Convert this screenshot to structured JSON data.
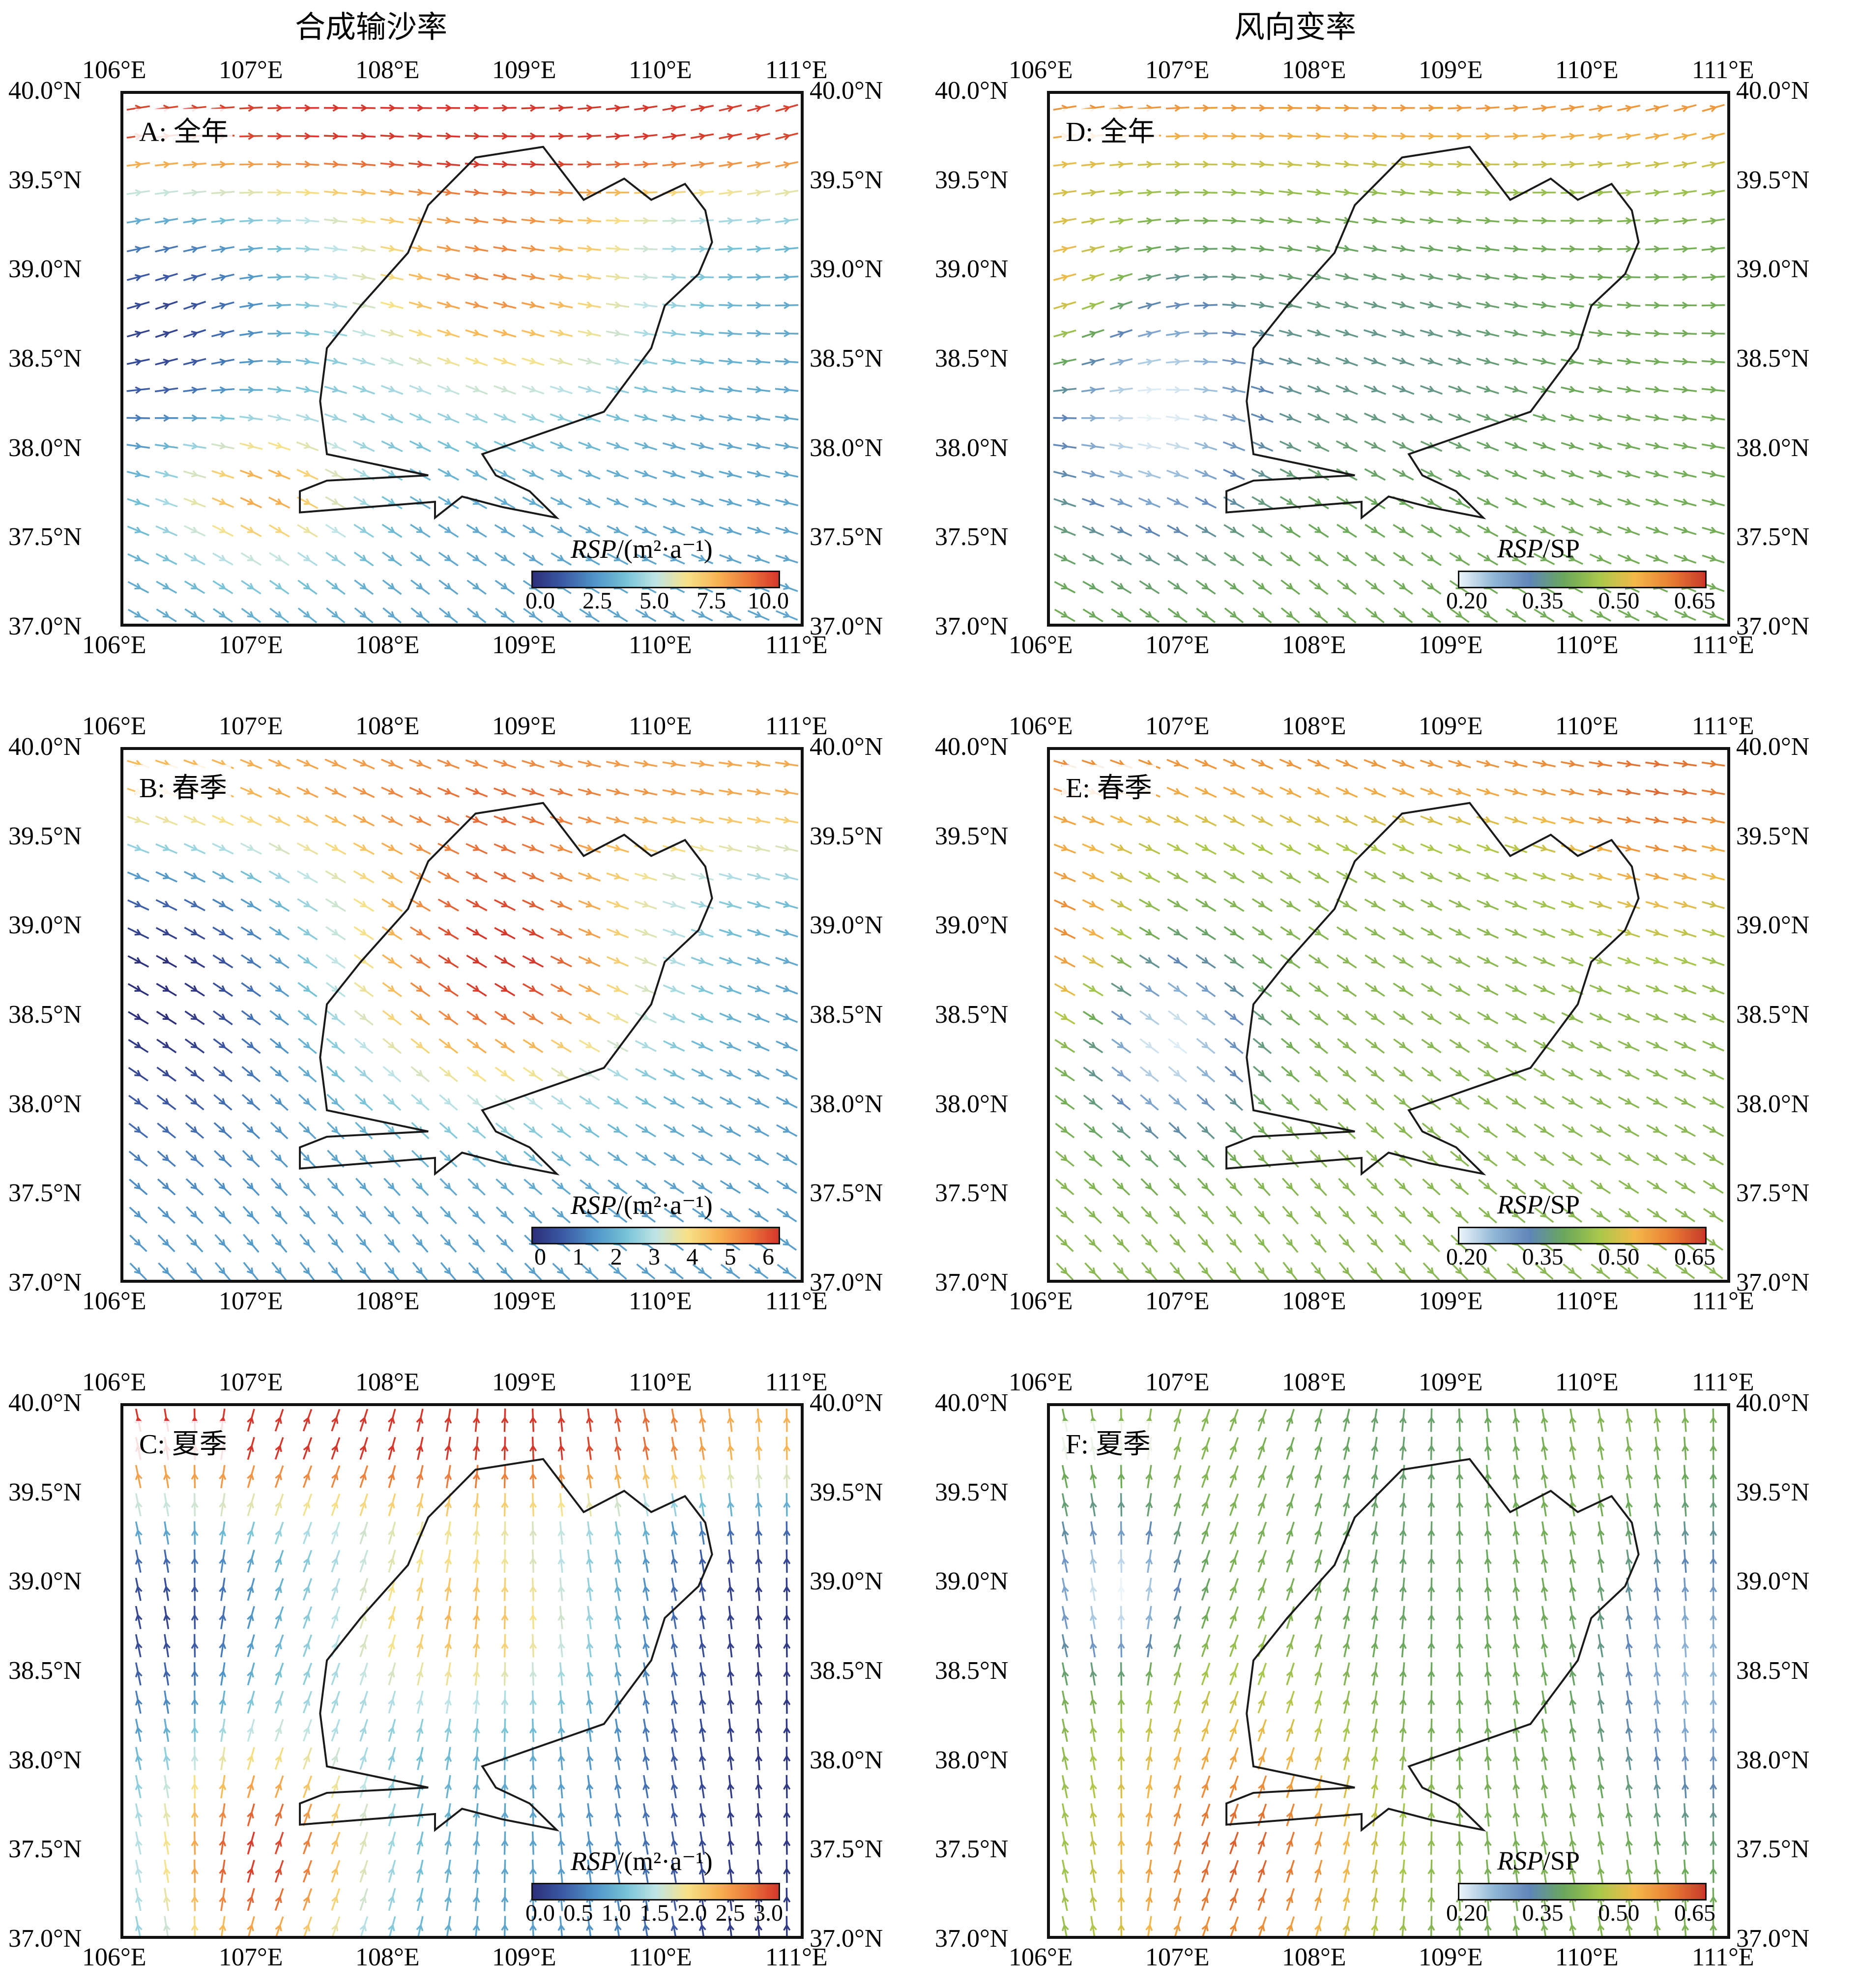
{
  "columns": {
    "left_title": "合成输沙率",
    "right_title": "风向变率"
  },
  "axes": {
    "lon_labels": [
      "106°E",
      "107°E",
      "108°E",
      "109°E",
      "110°E",
      "111°E"
    ],
    "lat_labels": [
      "40.0°N",
      "39.5°N",
      "39.0°N",
      "38.5°N",
      "38.0°N",
      "37.5°N",
      "37.0°N"
    ]
  },
  "panels": [
    {
      "id": "A",
      "label": "A: 全年",
      "cb_title_main": "RSP",
      "cb_title_rest": "/(m²·a⁻¹)",
      "cb_ticks": [
        "0.0",
        "2.5",
        "5.0",
        "7.5",
        "10.0"
      ],
      "palette": "rsp"
    },
    {
      "id": "B",
      "label": "B: 春季",
      "cb_title_main": "RSP",
      "cb_title_rest": "/(m²·a⁻¹)",
      "cb_ticks": [
        "0",
        "1",
        "2",
        "3",
        "4",
        "5",
        "6"
      ],
      "palette": "rsp"
    },
    {
      "id": "C",
      "label": "C: 夏季",
      "cb_title_main": "RSP",
      "cb_title_rest": "/(m²·a⁻¹)",
      "cb_ticks": [
        "0.0",
        "0.5",
        "1.0",
        "1.5",
        "2.0",
        "2.5",
        "3.0"
      ],
      "palette": "rsp"
    },
    {
      "id": "D",
      "label": "D: 全年",
      "cb_title_main": "RSP",
      "cb_title_rest": "/SP",
      "cb_ticks": [
        "0.20",
        "0.35",
        "0.50",
        "0.65"
      ],
      "palette": "ratio"
    },
    {
      "id": "E",
      "label": "E: 春季",
      "cb_title_main": "RSP",
      "cb_title_rest": "/SP",
      "cb_ticks": [
        "0.20",
        "0.35",
        "0.50",
        "0.65"
      ],
      "palette": "ratio"
    },
    {
      "id": "F",
      "label": "F: 夏季",
      "cb_title_main": "RSP",
      "cb_title_rest": "/SP",
      "cb_ticks": [
        "0.20",
        "0.35",
        "0.50",
        "0.65"
      ],
      "palette": "ratio"
    }
  ],
  "map_extent": {
    "lon": [
      106,
      111
    ],
    "lat": [
      37,
      40
    ]
  },
  "colors": {
    "rsp_palette": [
      "#2c2f7a",
      "#3c5aa6",
      "#4f93c7",
      "#74c1d6",
      "#bfe4e6",
      "#f6e28a",
      "#f7b453",
      "#ec7a3a",
      "#d6372b"
    ],
    "ratio_palette": [
      "#e9f4f8",
      "#8fb6d6",
      "#5f86b8",
      "#6aa85a",
      "#a9c84a",
      "#f3b94a",
      "#ea7f33",
      "#c73a2a"
    ],
    "outline": "#1a1a1a"
  }
}
